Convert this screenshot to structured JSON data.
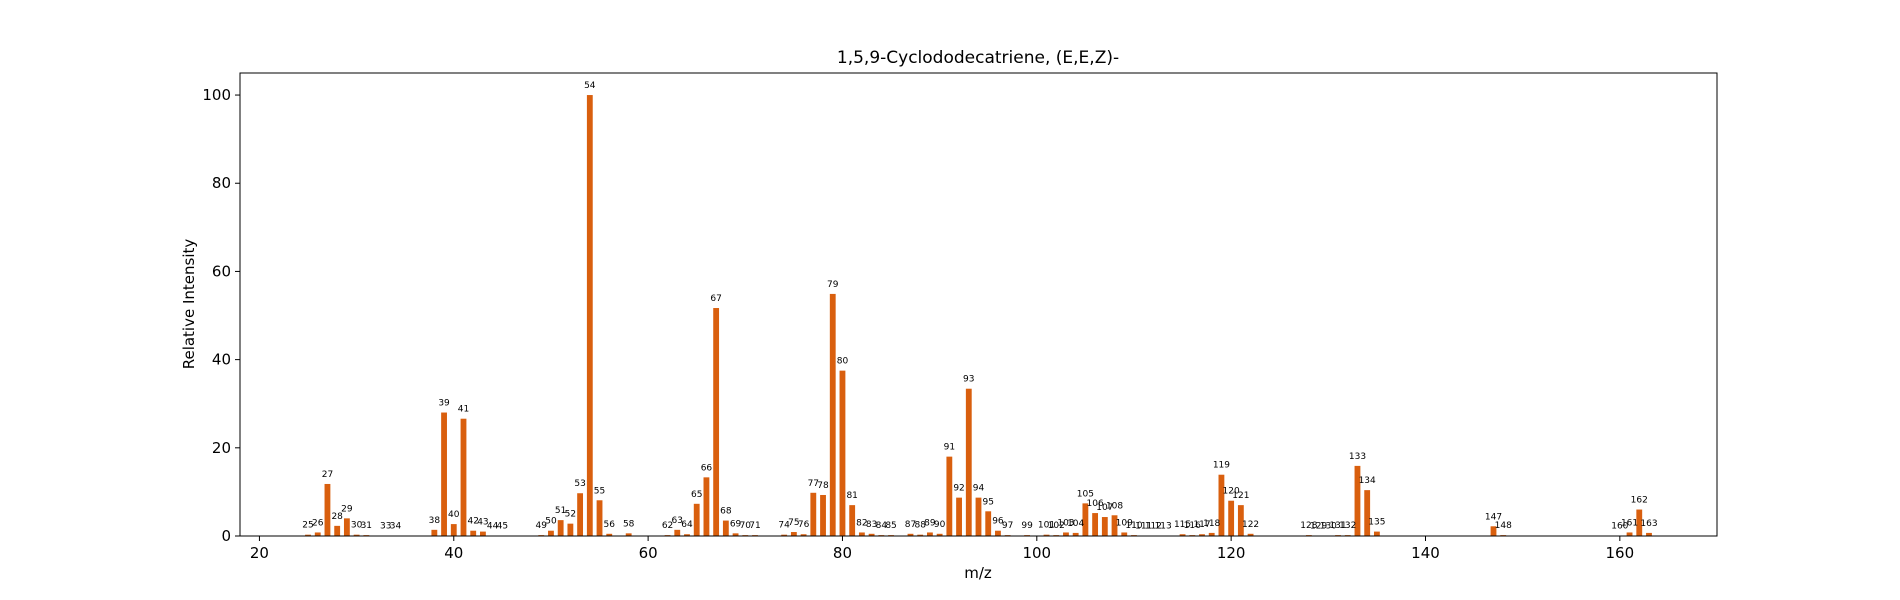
{
  "colors": {
    "bar": "#d95f0e",
    "axis": "#000000",
    "background": "#ffffff"
  },
  "chart_data": {
    "type": "bar",
    "title": "1,5,9-Cyclododecatriene, (E,E,Z)-",
    "xlabel": "m/z",
    "ylabel": "Relative Intensity",
    "xlim": [
      18,
      170
    ],
    "ylim": [
      0,
      105
    ],
    "xticks": [
      20,
      40,
      60,
      80,
      100,
      120,
      140,
      160
    ],
    "yticks": [
      0,
      20,
      40,
      60,
      80,
      100
    ],
    "grid": false,
    "legend": "none",
    "x": [
      25,
      26,
      27,
      28,
      29,
      30,
      31,
      33,
      34,
      38,
      39,
      40,
      41,
      42,
      43,
      44,
      45,
      49,
      50,
      51,
      52,
      53,
      54,
      55,
      56,
      58,
      62,
      63,
      64,
      65,
      66,
      67,
      68,
      69,
      70,
      71,
      74,
      75,
      76,
      77,
      78,
      79,
      80,
      81,
      82,
      83,
      84,
      85,
      87,
      88,
      89,
      90,
      91,
      92,
      93,
      94,
      95,
      96,
      97,
      99,
      101,
      102,
      103,
      104,
      105,
      106,
      107,
      108,
      109,
      110,
      111,
      112,
      113,
      115,
      116,
      117,
      118,
      119,
      120,
      121,
      122,
      128,
      129,
      130,
      131,
      132,
      133,
      134,
      135,
      147,
      148,
      160,
      161,
      162,
      163
    ],
    "values": [
      0.3,
      0.8,
      11.8,
      2.3,
      4.0,
      0.3,
      0.2,
      0.1,
      0.1,
      1.4,
      28.0,
      2.7,
      26.6,
      1.2,
      1.0,
      0.1,
      0.1,
      0.2,
      1.2,
      3.6,
      2.8,
      9.7,
      100,
      8.1,
      0.5,
      0.6,
      0.2,
      1.4,
      0.4,
      7.3,
      13.3,
      51.7,
      3.5,
      0.6,
      0.2,
      0.2,
      0.3,
      0.9,
      0.4,
      9.8,
      9.3,
      54.9,
      37.5,
      7.0,
      0.8,
      0.5,
      0.2,
      0.2,
      0.5,
      0.3,
      0.8,
      0.5,
      18.0,
      8.7,
      33.4,
      8.7,
      5.6,
      1.2,
      0.2,
      0.2,
      0.3,
      0.2,
      0.8,
      0.7,
      7.4,
      5.2,
      4.3,
      4.7,
      0.8,
      0.2,
      0.1,
      0.1,
      0.1,
      0.4,
      0.2,
      0.4,
      0.7,
      13.9,
      8.0,
      7.0,
      0.5,
      0.2,
      0.1,
      0.1,
      0.2,
      0.2,
      15.9,
      10.4,
      1.0,
      2.2,
      0.2,
      0.1,
      0.8,
      6.0,
      0.7
    ]
  }
}
